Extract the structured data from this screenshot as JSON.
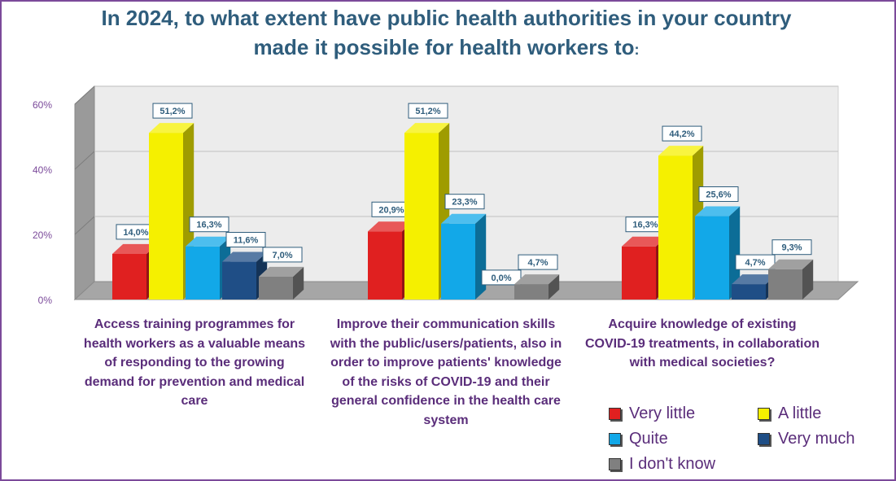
{
  "title": {
    "line1": "In 2024, to what extent have public health authorities in your country",
    "line2": "made it possible for health workers to",
    "colon": ":"
  },
  "colors": {
    "Very little": "#e02020",
    "A little": "#f5f000",
    "Quite": "#12a8e8",
    "Very much": "#1f4e86",
    "I don't know": "#808080",
    "frame": "#7b4a9a",
    "text": "#5a2d7a",
    "title": "#2f5d7c"
  },
  "chart_data": {
    "type": "bar",
    "categories": [
      "Access training programmes for health workers as a valuable means of responding to the growing demand for prevention and medical care",
      "Improve their communication skills with the public/users/patients, also in order to improve patients' knowledge of the risks of COVID-19 and their general confidence in the health care system",
      "Acquire knowledge of existing COVID-19 treatments, in collaboration with medical societies?"
    ],
    "series": [
      {
        "name": "Very little",
        "values": [
          14.0,
          20.9,
          16.3
        ],
        "labels": [
          "14,0%",
          "20,9%",
          "16,3%"
        ]
      },
      {
        "name": "A little",
        "values": [
          51.2,
          51.2,
          44.2
        ],
        "labels": [
          "51,2%",
          "51,2%",
          "44,2%"
        ]
      },
      {
        "name": "Quite",
        "values": [
          16.3,
          23.3,
          25.6
        ],
        "labels": [
          "16,3%",
          "23,3%",
          "25,6%"
        ]
      },
      {
        "name": "Very much",
        "values": [
          11.6,
          0.0,
          4.7
        ],
        "labels": [
          "11,6%",
          "0,0%",
          "4,7%"
        ]
      },
      {
        "name": "I don't know",
        "values": [
          7.0,
          4.7,
          9.3
        ],
        "labels": [
          "7,0%",
          "4,7%",
          "9,3%"
        ]
      }
    ],
    "yticks": [
      "0%",
      "20%",
      "40%",
      "60%"
    ],
    "ylim": [
      0,
      60
    ],
    "grid": true,
    "legend_position": "bottom-right",
    "style": "3d-bar"
  }
}
